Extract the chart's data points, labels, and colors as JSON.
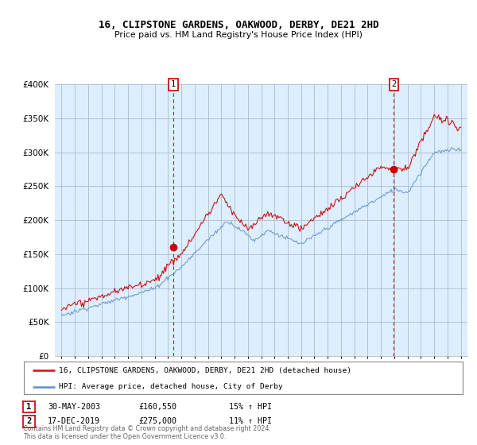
{
  "title": "16, CLIPSTONE GARDENS, OAKWOOD, DERBY, DE21 2HD",
  "subtitle": "Price paid vs. HM Land Registry's House Price Index (HPI)",
  "legend_line1": "16, CLIPSTONE GARDENS, OAKWOOD, DERBY, DE21 2HD (detached house)",
  "legend_line2": "HPI: Average price, detached house, City of Derby",
  "annotation1_date": "30-MAY-2003",
  "annotation1_price": "£160,550",
  "annotation1_hpi": "15% ↑ HPI",
  "annotation2_date": "17-DEC-2019",
  "annotation2_price": "£275,000",
  "annotation2_hpi": "11% ↑ HPI",
  "footer": "Contains HM Land Registry data © Crown copyright and database right 2024.\nThis data is licensed under the Open Government Licence v3.0.",
  "sale1_x": 2003.41,
  "sale1_y": 160550,
  "sale2_x": 2019.96,
  "sale2_y": 275000,
  "hpi_color": "#6090c8",
  "price_color": "#cc1111",
  "dot_color": "#cc0000",
  "bg_chart": "#ddeeff",
  "background_color": "#ffffff",
  "grid_color": "#aabbcc",
  "ylim": [
    0,
    400000
  ],
  "xlim": [
    1994.5,
    2025.5
  ]
}
